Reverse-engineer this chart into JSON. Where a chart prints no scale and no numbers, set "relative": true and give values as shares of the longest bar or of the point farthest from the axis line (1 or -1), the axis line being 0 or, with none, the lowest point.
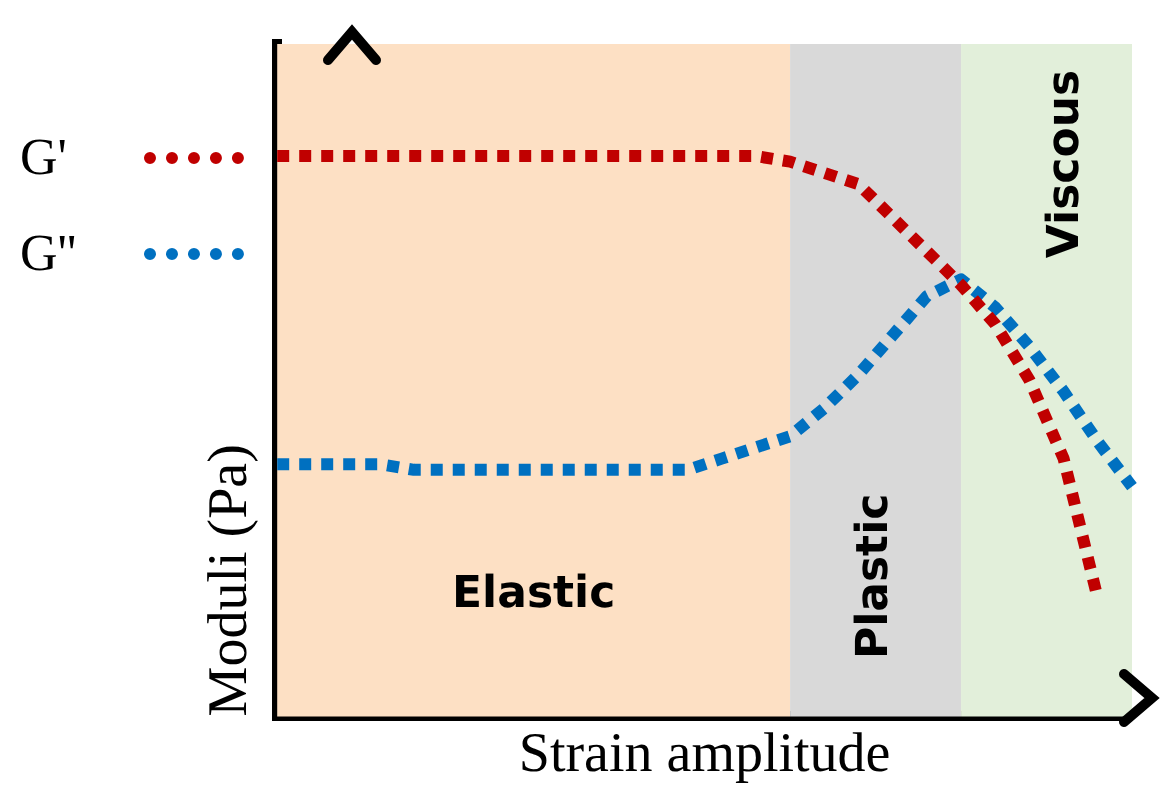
{
  "chart_data": {
    "type": "line",
    "relative": true,
    "xlabel": "Strain amplitude",
    "ylabel": "Moduli (Pa)",
    "legend": "left",
    "marker": "none",
    "line_style": "dotted",
    "categories": [
      null,
      null,
      null,
      null,
      null,
      null,
      null,
      null,
      null,
      null,
      null,
      null,
      null,
      null,
      null,
      null,
      null,
      null,
      null,
      null,
      null,
      null,
      null,
      null,
      null,
      null
    ],
    "series": [
      {
        "name": "G'",
        "color": "#c00000",
        "values": [
          1,
          1,
          1,
          1,
          1,
          1,
          1,
          1,
          1,
          1,
          1,
          1,
          1,
          1,
          1,
          0.99,
          0.97,
          0.95,
          0.89,
          0.83,
          0.77,
          0.7,
          0.6,
          0.46,
          0.21,
          null
        ]
      },
      {
        "name": "G''",
        "color": "#0070c0",
        "values": [
          0.45,
          0.45,
          0.45,
          0.45,
          0.44,
          0.44,
          0.44,
          0.44,
          0.44,
          0.44,
          0.44,
          0.44,
          0.44,
          0.46,
          0.48,
          0.5,
          0.55,
          0.61,
          0.68,
          0.75,
          0.78,
          0.73,
          0.66,
          0.58,
          0.49,
          0.41
        ]
      }
    ],
    "annotations": [
      "Elastic",
      "Plastic",
      "Viscous"
    ]
  }
}
